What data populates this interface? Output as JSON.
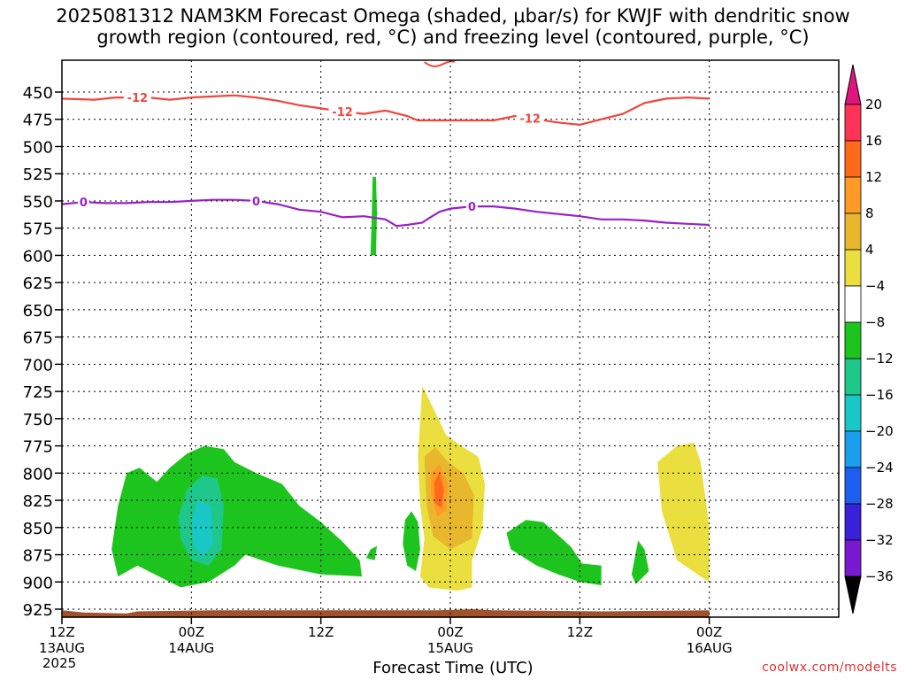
{
  "title_line1": "2025081312 NAM3KM Forecast Omega (shaded, μbar/s) for KWJF with dendritic snow",
  "title_line2": "growth region (contoured, red, °C) and freezing level (contoured, purple, °C)",
  "xlabel": "Forecast Time (UTC)",
  "year_label": "2025",
  "credit": "coolwx.com/modelts",
  "chart_data": {
    "type": "contour",
    "y_axis": {
      "label": "",
      "unit": "hPa",
      "inverted": true,
      "ticks": [
        450,
        475,
        500,
        525,
        550,
        575,
        600,
        625,
        650,
        675,
        700,
        725,
        750,
        775,
        800,
        825,
        850,
        875,
        900,
        925
      ],
      "range": [
        430,
        933
      ]
    },
    "x_axis": {
      "unit": "hours",
      "range": [
        0,
        36
      ],
      "ticks": [
        {
          "h": 0,
          "line1": "12Z",
          "line2": "13AUG"
        },
        {
          "h": 6,
          "line1": "00Z",
          "line2": "14AUG"
        },
        {
          "h": 12,
          "line1": "12Z",
          "line2": ""
        },
        {
          "h": 18,
          "line1": "00Z",
          "line2": "15AUG"
        },
        {
          "h": 24,
          "line1": "12Z",
          "line2": ""
        },
        {
          "h": 30,
          "line1": "00Z",
          "line2": "16AUG"
        }
      ]
    },
    "grid": true,
    "colorbar": {
      "labels": [
        "20",
        "16",
        "12",
        "8",
        "4",
        "−4",
        "−8",
        "−12",
        "−16",
        "−20",
        "−24",
        "−28",
        "−32",
        "−36"
      ],
      "colors": [
        "#ff3355",
        "#ff6a1a",
        "#ff9a26",
        "#e8b72e",
        "#eadf3e",
        "#ffffff",
        "#1ec41e",
        "#1ec88a",
        "#19c7c7",
        "#1a9fef",
        "#1f5fef",
        "#3a20d8",
        "#7a1ad0",
        "#a3a3a3"
      ],
      "top_arrow_color": "#e0157e",
      "bottom_arrow_color": "#000000"
    },
    "contours": [
      {
        "name": "",
        "value": "-12",
        "color": "#f0453c",
        "points": [
          [
            0,
            456
          ],
          [
            1.5,
            457
          ],
          [
            2.5,
            455
          ],
          [
            4,
            455
          ],
          [
            5,
            457
          ],
          [
            6,
            455
          ],
          [
            7,
            454
          ],
          [
            8,
            453
          ],
          [
            9,
            455
          ],
          [
            10,
            458
          ],
          [
            11,
            462
          ],
          [
            12,
            465
          ],
          [
            13,
            468
          ],
          [
            14,
            470
          ],
          [
            15,
            467
          ],
          [
            16,
            472
          ],
          [
            16.5,
            476
          ],
          [
            17,
            476
          ],
          [
            18,
            476
          ],
          [
            19,
            476
          ],
          [
            20,
            476
          ],
          [
            21,
            472
          ],
          [
            22,
            475
          ],
          [
            23,
            478
          ],
          [
            24,
            480
          ],
          [
            25,
            475
          ],
          [
            26,
            470
          ],
          [
            27,
            460
          ],
          [
            28,
            456
          ],
          [
            29,
            455
          ],
          [
            30,
            456
          ]
        ],
        "labels": [
          [
            3.5,
            "-12"
          ],
          [
            13,
            "-12"
          ],
          [
            21.7,
            "-12"
          ]
        ]
      },
      {
        "name": "",
        "value": "0",
        "color": "#9a20c8",
        "points": [
          [
            0,
            553
          ],
          [
            1,
            551
          ],
          [
            2,
            552
          ],
          [
            3,
            552
          ],
          [
            4,
            551
          ],
          [
            5,
            551
          ],
          [
            6,
            550
          ],
          [
            7,
            549
          ],
          [
            8,
            549
          ],
          [
            9,
            550
          ],
          [
            10,
            553
          ],
          [
            11,
            558
          ],
          [
            12,
            560
          ],
          [
            13,
            565
          ],
          [
            14,
            564
          ],
          [
            15,
            567
          ],
          [
            15.5,
            573
          ],
          [
            16,
            572
          ],
          [
            16.7,
            570
          ],
          [
            17,
            566
          ],
          [
            17.5,
            560
          ],
          [
            18,
            557
          ],
          [
            19,
            555
          ],
          [
            20,
            555
          ],
          [
            21,
            557
          ],
          [
            22,
            560
          ],
          [
            23,
            562
          ],
          [
            24,
            564
          ],
          [
            25,
            567
          ],
          [
            26,
            567
          ],
          [
            27,
            568
          ],
          [
            28,
            570
          ],
          [
            29,
            571
          ],
          [
            30,
            572
          ]
        ],
        "labels": [
          [
            1,
            "0"
          ],
          [
            9,
            "0"
          ],
          [
            19,
            "0"
          ]
        ]
      }
    ],
    "shaded_regions": [
      {
        "value_band": "-8 to -4",
        "color": "#1ec41e",
        "polygon": [
          [
            2.3,
            870
          ],
          [
            2.6,
            830
          ],
          [
            3,
            800
          ],
          [
            3.6,
            795
          ],
          [
            4.4,
            808
          ],
          [
            5,
            795
          ],
          [
            5.8,
            782
          ],
          [
            6.6,
            775
          ],
          [
            7.5,
            778
          ],
          [
            8,
            790
          ],
          [
            9,
            800
          ],
          [
            10.2,
            810
          ],
          [
            11,
            830
          ],
          [
            12,
            845
          ],
          [
            13,
            863
          ],
          [
            13.8,
            880
          ],
          [
            13.9,
            895
          ],
          [
            12,
            893
          ],
          [
            10,
            885
          ],
          [
            8.5,
            875
          ],
          [
            8,
            885
          ],
          [
            6.8,
            900
          ],
          [
            5.5,
            905
          ],
          [
            4.5,
            895
          ],
          [
            3.5,
            885
          ],
          [
            2.6,
            895
          ]
        ]
      },
      {
        "value_band": "-12 to -8",
        "color": "#1ec88a",
        "polygon": [
          [
            5.4,
            840
          ],
          [
            5.8,
            815
          ],
          [
            6.5,
            802
          ],
          [
            7.2,
            805
          ],
          [
            7.5,
            830
          ],
          [
            7.4,
            870
          ],
          [
            6.8,
            885
          ],
          [
            6,
            880
          ],
          [
            5.5,
            860
          ]
        ]
      },
      {
        "value_band": "-16 to -12",
        "color": "#19c7c7",
        "polygon": [
          [
            6,
            845
          ],
          [
            6.3,
            825
          ],
          [
            6.9,
            830
          ],
          [
            7,
            865
          ],
          [
            6.5,
            878
          ],
          [
            6.1,
            865
          ]
        ]
      },
      {
        "value_band": "-8 to -4",
        "color": "#1ec41e",
        "polygon": [
          [
            14.4,
            528
          ],
          [
            14.55,
            528
          ],
          [
            14.6,
            560
          ],
          [
            14.55,
            600
          ],
          [
            14.3,
            600
          ],
          [
            14.35,
            570
          ]
        ]
      },
      {
        "value_band": "-8 to -4",
        "color": "#1ec41e",
        "polygon": [
          [
            15.9,
            843
          ],
          [
            16.2,
            835
          ],
          [
            16.5,
            845
          ],
          [
            16.6,
            870
          ],
          [
            16.4,
            890
          ],
          [
            16,
            885
          ],
          [
            15.8,
            865
          ]
        ]
      },
      {
        "value_band": "-8 to -4",
        "color": "#1ec41e",
        "polygon": [
          [
            14.3,
            870
          ],
          [
            14.6,
            867
          ],
          [
            14.5,
            880
          ],
          [
            14.1,
            878
          ]
        ]
      },
      {
        "value_band": "4 to 8",
        "color": "#eadf3e",
        "polygon": [
          [
            16.5,
            785
          ],
          [
            16.7,
            720
          ],
          [
            17.2,
            740
          ],
          [
            17.8,
            765
          ],
          [
            18.5,
            775
          ],
          [
            19.3,
            785
          ],
          [
            19.6,
            810
          ],
          [
            19.5,
            850
          ],
          [
            19,
            880
          ],
          [
            19,
            905
          ],
          [
            18.3,
            908
          ],
          [
            17,
            905
          ],
          [
            16.6,
            895
          ],
          [
            16.8,
            860
          ],
          [
            16.6,
            830
          ]
        ]
      },
      {
        "value_band": "8 to 12",
        "color": "#e8b72e",
        "polygon": [
          [
            16.8,
            785
          ],
          [
            17.3,
            776
          ],
          [
            17.9,
            790
          ],
          [
            18.6,
            800
          ],
          [
            19.1,
            820
          ],
          [
            19,
            860
          ],
          [
            18,
            870
          ],
          [
            17.2,
            858
          ],
          [
            16.9,
            830
          ]
        ]
      },
      {
        "value_band": "12 to 16",
        "color": "#ff9a26",
        "polygon": [
          [
            17.1,
            800
          ],
          [
            17.5,
            792
          ],
          [
            17.9,
            810
          ],
          [
            17.8,
            835
          ],
          [
            17.4,
            840
          ],
          [
            17.1,
            820
          ]
        ]
      },
      {
        "value_band": "16 to 20",
        "color": "#ff6a1a",
        "polygon": [
          [
            17.25,
            808
          ],
          [
            17.5,
            800
          ],
          [
            17.7,
            815
          ],
          [
            17.6,
            832
          ],
          [
            17.3,
            828
          ]
        ]
      },
      {
        "value_band": "-8 to -4",
        "color": "#1ec41e",
        "polygon": [
          [
            20.6,
            855
          ],
          [
            21.5,
            843
          ],
          [
            22.3,
            845
          ],
          [
            23,
            857
          ],
          [
            23.6,
            868
          ],
          [
            24.1,
            883
          ],
          [
            25,
            885
          ],
          [
            25,
            903
          ],
          [
            24,
            900
          ],
          [
            23,
            893
          ],
          [
            22,
            885
          ],
          [
            20.8,
            870
          ]
        ]
      },
      {
        "value_band": "-8 to -4",
        "color": "#1ec41e",
        "polygon": [
          [
            26.4,
            893
          ],
          [
            26.7,
            862
          ],
          [
            27,
            870
          ],
          [
            27.2,
            890
          ],
          [
            26.6,
            902
          ]
        ]
      },
      {
        "value_band": "4 to 8",
        "color": "#eadf3e",
        "polygon": [
          [
            27.6,
            790
          ],
          [
            28.5,
            775
          ],
          [
            29.3,
            772
          ],
          [
            29.6,
            790
          ],
          [
            29.8,
            820
          ],
          [
            30,
            850
          ],
          [
            30,
            900
          ],
          [
            29.6,
            895
          ],
          [
            28.5,
            880
          ],
          [
            27.8,
            835
          ]
        ]
      },
      {
        "value_band": "surface",
        "color": "#a0522d",
        "polygon": [
          [
            0,
            926
          ],
          [
            1,
            928
          ],
          [
            3,
            929
          ],
          [
            3.5,
            927
          ],
          [
            7,
            926
          ],
          [
            17.5,
            926
          ],
          [
            19,
            925
          ],
          [
            20,
            926
          ],
          [
            25,
            927
          ],
          [
            30,
            926
          ],
          [
            30,
            933
          ],
          [
            0,
            933
          ]
        ]
      },
      {
        "value_band": "-4 to 4 (above plot)",
        "color": "#ffffff",
        "polygon": []
      }
    ]
  }
}
